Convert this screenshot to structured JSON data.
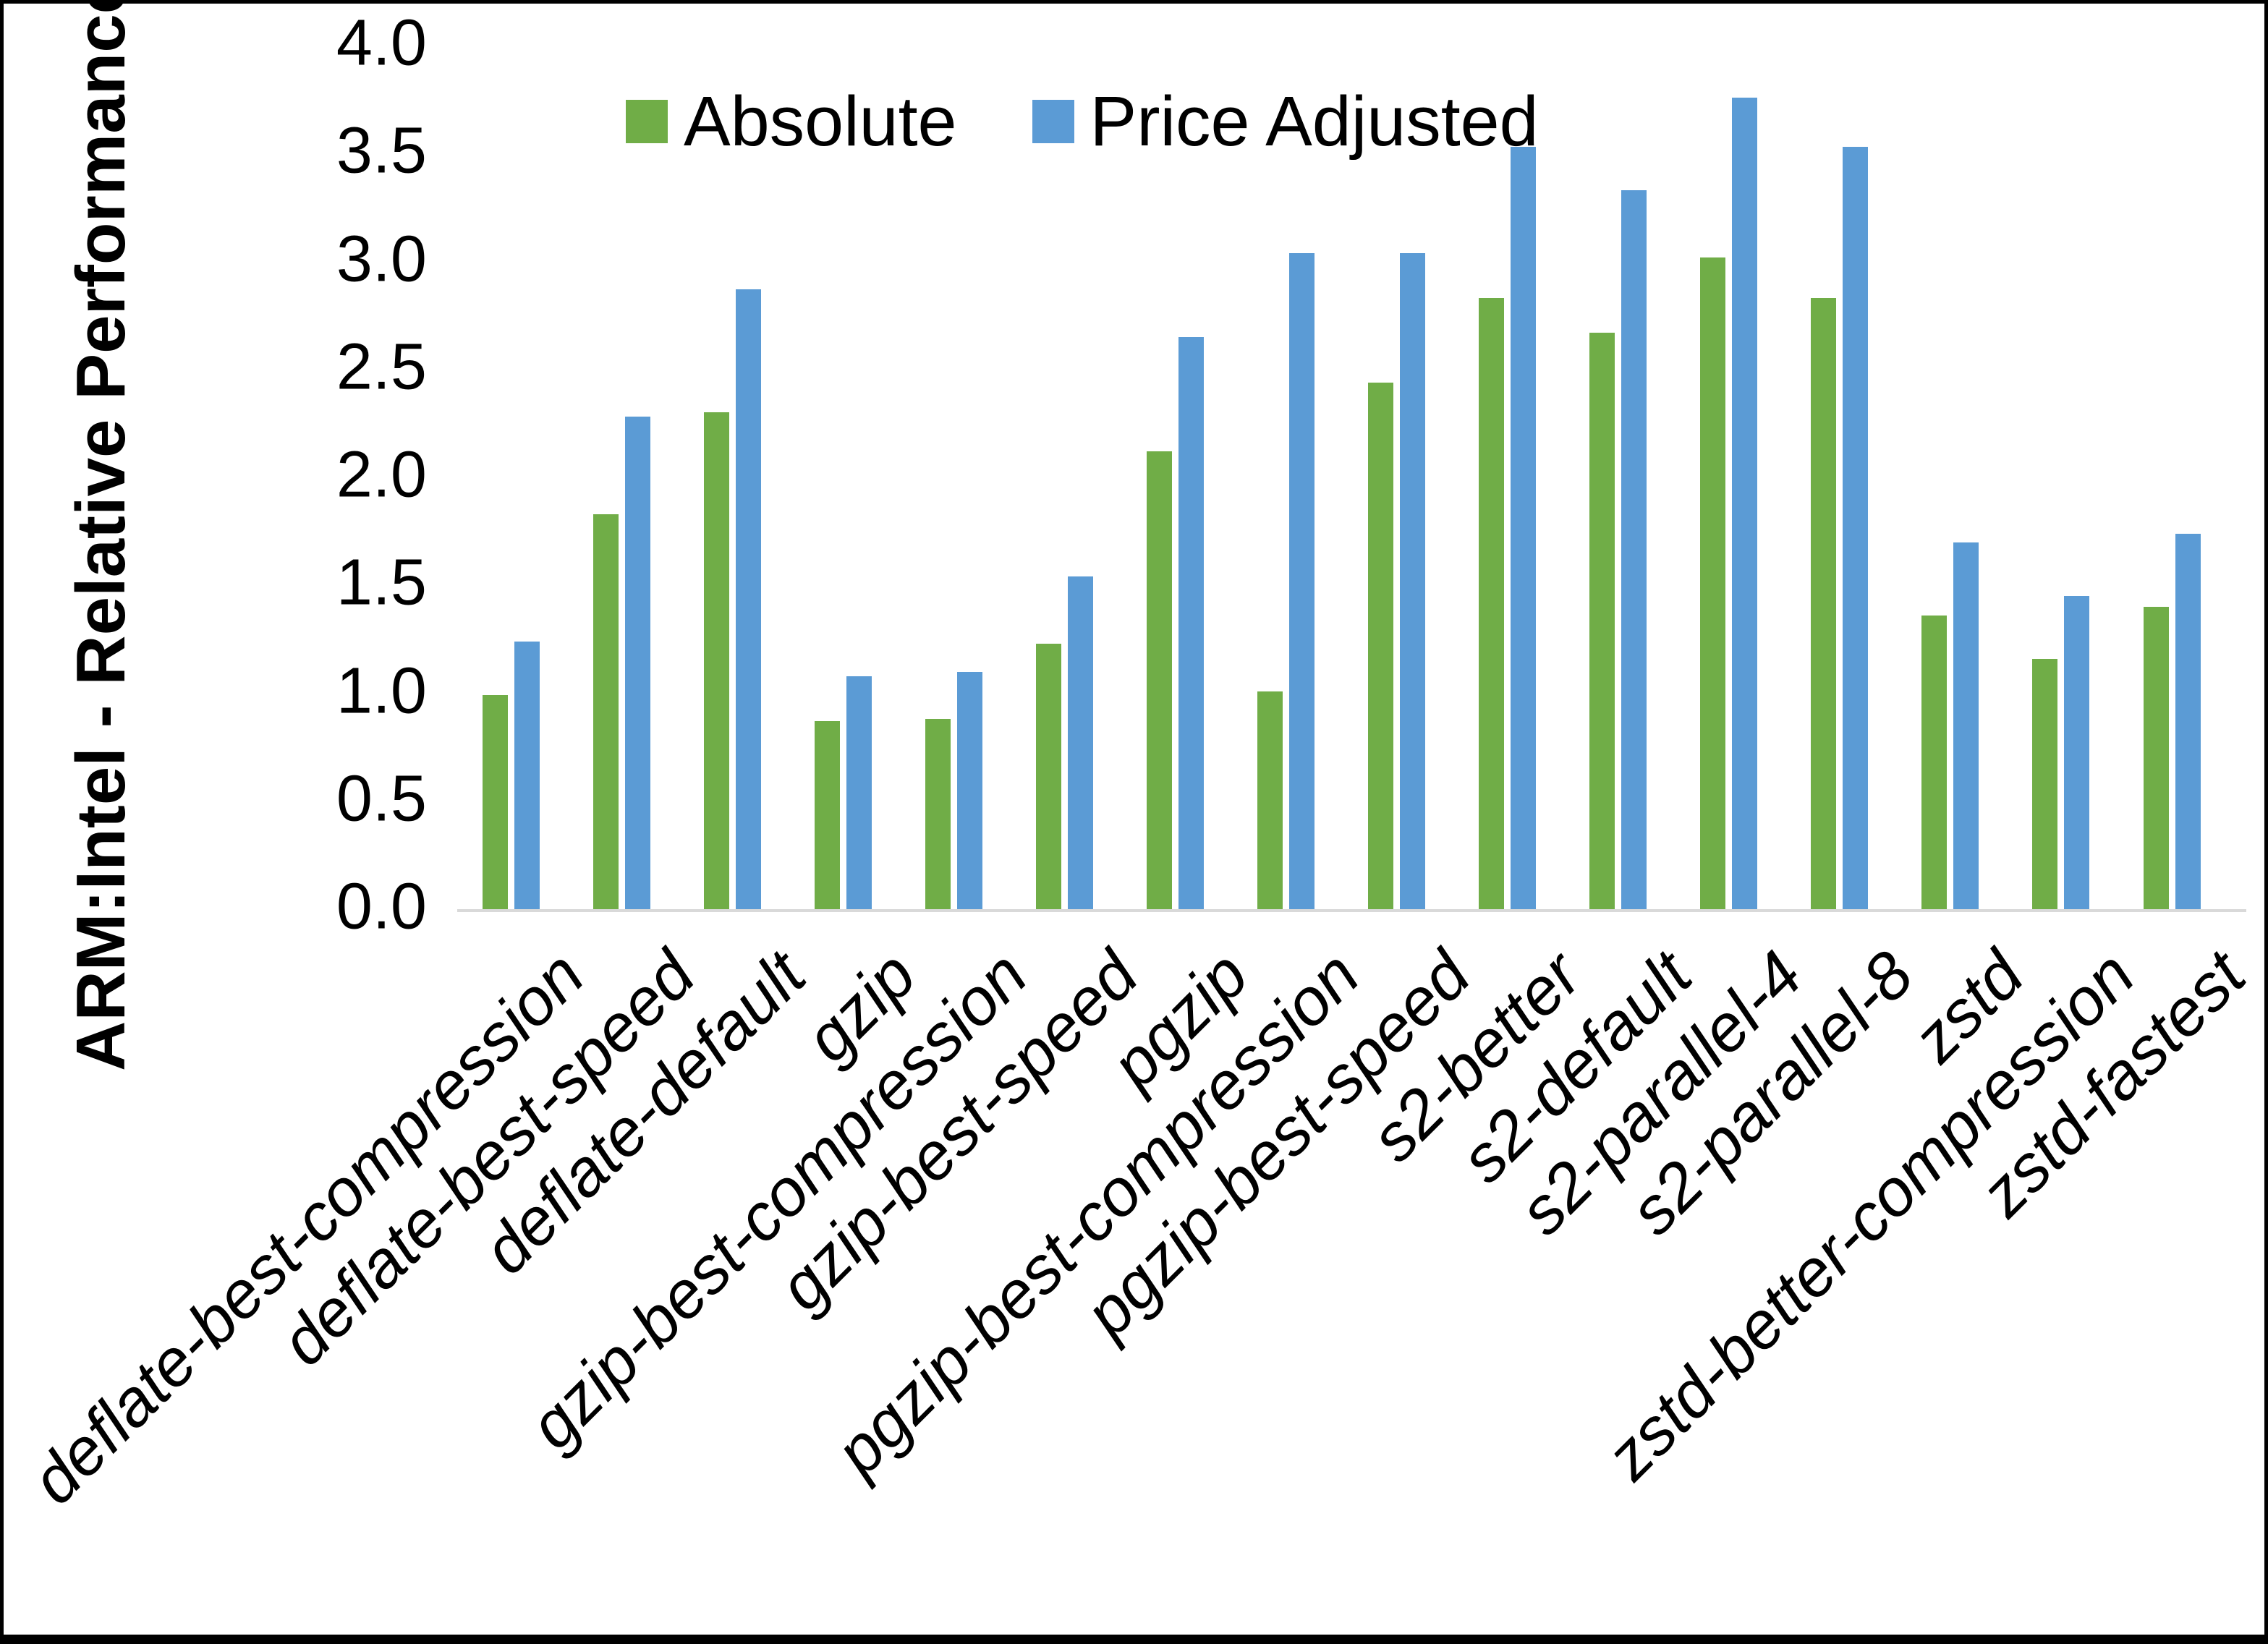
{
  "chart_data": {
    "type": "bar",
    "title": "",
    "xlabel": "",
    "ylabel": "ARM:Intel - Relative Performance",
    "ylim": [
      0.0,
      4.0
    ],
    "ytick_step": 0.5,
    "ytick_labels": [
      "0.0",
      "0.5",
      "1.0",
      "1.5",
      "2.0",
      "2.5",
      "3.0",
      "3.5",
      "4.0"
    ],
    "grid": false,
    "legend_position": "top-center",
    "background_color": "#ffffff",
    "axis_line_color": "#d9d9d9",
    "text_color": "#000000",
    "categories": [
      "deflate-best-compression",
      "deflate-best-speed",
      "deflate-default",
      "gzip",
      "gzip-best-compression",
      "gzip-best-speed",
      "pgzip",
      "pgzip-best-compression",
      "pgzip-best-speed",
      "s2-better",
      "s2-default",
      "s2-parallel-4",
      "s2-parallel-8",
      "zstd",
      "zstd-better-compression",
      "zstd-fastest"
    ],
    "series": [
      {
        "name": "Absolute",
        "color": "#70AD47",
        "values": [
          0.99,
          1.83,
          2.3,
          0.87,
          0.88,
          1.23,
          2.12,
          1.01,
          2.44,
          2.83,
          2.67,
          3.02,
          2.83,
          1.36,
          1.16,
          1.4
        ]
      },
      {
        "name": "Price Adjusted",
        "color": "#5B9BD5",
        "values": [
          1.24,
          2.28,
          2.87,
          1.08,
          1.1,
          1.54,
          2.65,
          3.04,
          3.04,
          3.53,
          3.33,
          3.76,
          3.53,
          1.7,
          1.45,
          1.74
        ]
      }
    ]
  }
}
